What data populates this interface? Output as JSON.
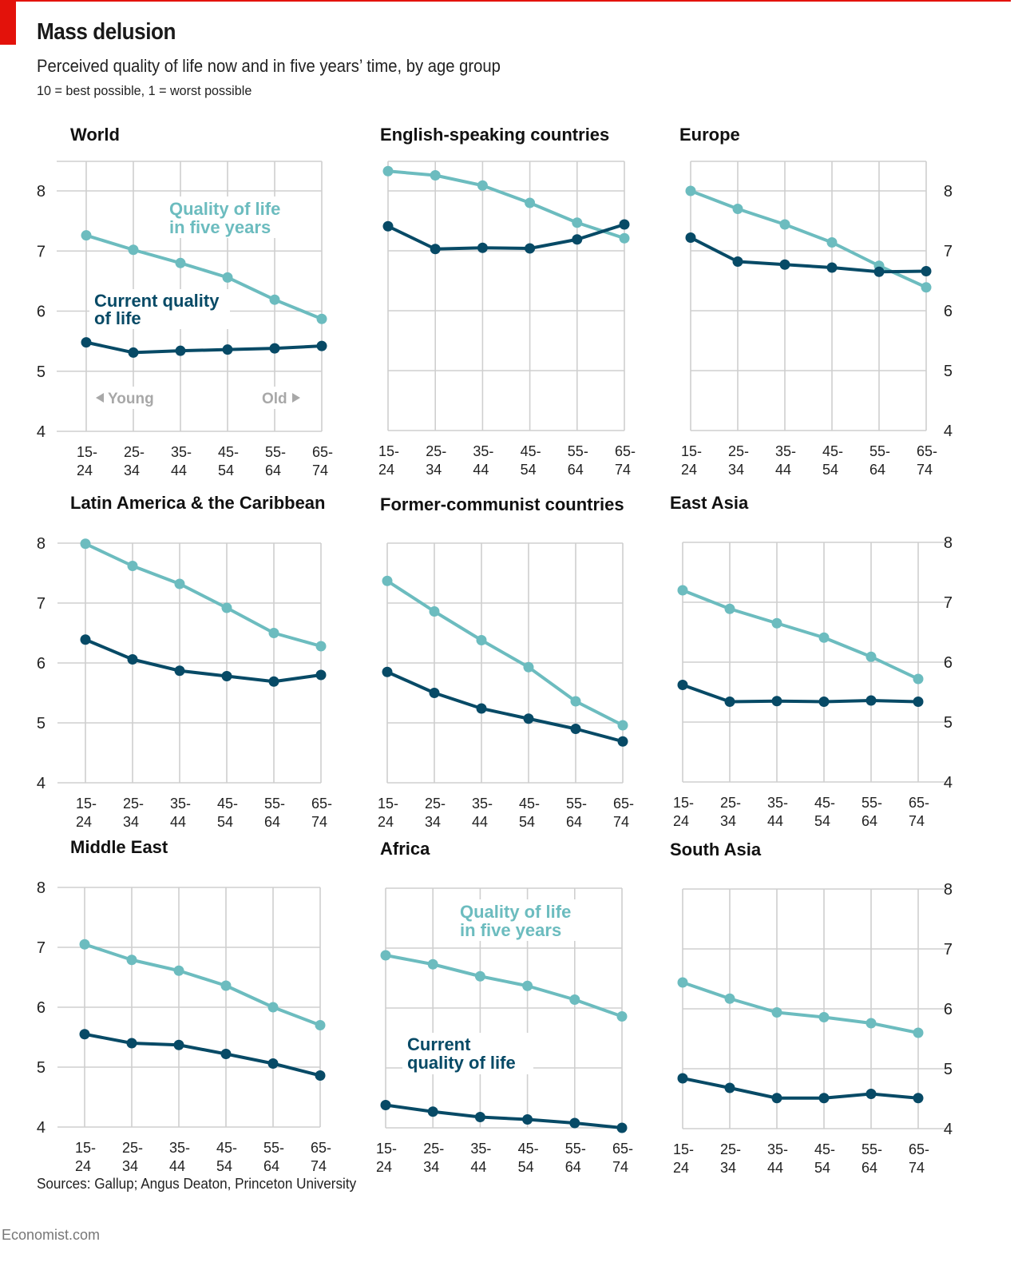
{
  "header": {
    "title": "Mass delusion",
    "subtitle": "Perceived quality of life now and in five years’ time, by age group",
    "scale_note": "10 = best possible, 1 = worst possible"
  },
  "footer": {
    "source": "Sources: Gallup; Angus Deaton, Princeton University",
    "brand": "Economist.com"
  },
  "colors": {
    "future": "#6cbcbf",
    "current": "#074a66",
    "brand_red": "#e3120b",
    "grid": "#cfcfcf"
  },
  "chart_data": {
    "type": "line",
    "title": "Mass delusion",
    "subtitle": "Perceived quality of life now and in five years’ time, by age group",
    "categories": [
      "15-\n24",
      "25-\n34",
      "35-\n44",
      "45-\n54",
      "55-\n64",
      "65-\n74"
    ],
    "category_labels": [
      [
        "15-",
        "24"
      ],
      [
        "25-",
        "34"
      ],
      [
        "35-",
        "44"
      ],
      [
        "45-",
        "54"
      ],
      [
        "55-",
        "64"
      ],
      [
        "65-",
        "74"
      ]
    ],
    "yticks": [
      4,
      5,
      6,
      7,
      8
    ],
    "ylim": [
      4,
      8
    ],
    "grid": true,
    "series_names": {
      "future": "Quality of life in five years",
      "current": "Current quality of life"
    },
    "annotations": {
      "future_lines": [
        "Quality of life",
        "in five years"
      ],
      "current_lines_world": [
        "Current quality",
        "of life"
      ],
      "current_lines_africa": [
        "Current",
        "quality of life"
      ],
      "young": "Young",
      "old": "Old"
    },
    "panels": [
      {
        "name": "World",
        "series": [
          {
            "name": "Quality of life in five years",
            "key": "future",
            "values": [
              7.26,
              7.02,
              6.8,
              6.56,
              6.19,
              5.87
            ]
          },
          {
            "name": "Current quality of life",
            "key": "current",
            "values": [
              5.48,
              5.31,
              5.34,
              5.36,
              5.38,
              5.42
            ]
          }
        ]
      },
      {
        "name": "English-speaking countries",
        "series": [
          {
            "name": "Quality of life in five years",
            "key": "future",
            "values": [
              8.33,
              8.26,
              8.09,
              7.8,
              7.47,
              7.21
            ]
          },
          {
            "name": "Current quality of life",
            "key": "current",
            "values": [
              7.41,
              7.03,
              7.05,
              7.04,
              7.19,
              7.44
            ]
          }
        ]
      },
      {
        "name": "Europe",
        "series": [
          {
            "name": "Quality of life in five years",
            "key": "future",
            "values": [
              8.0,
              7.7,
              7.44,
              7.14,
              6.75,
              6.39
            ]
          },
          {
            "name": "Current quality of life",
            "key": "current",
            "values": [
              7.22,
              6.82,
              6.77,
              6.72,
              6.65,
              6.66
            ]
          }
        ]
      },
      {
        "name": "Latin America & the Caribbean",
        "series": [
          {
            "name": "Quality of life in five years",
            "key": "future",
            "values": [
              7.99,
              7.62,
              7.32,
              6.92,
              6.5,
              6.28
            ]
          },
          {
            "name": "Current quality of life",
            "key": "current",
            "values": [
              6.39,
              6.06,
              5.87,
              5.78,
              5.69,
              5.8
            ]
          }
        ]
      },
      {
        "name": "Former-communist countries",
        "series": [
          {
            "name": "Quality of life in five years",
            "key": "future",
            "values": [
              7.37,
              6.86,
              6.38,
              5.93,
              5.36,
              4.96
            ]
          },
          {
            "name": "Current quality of life",
            "key": "current",
            "values": [
              5.85,
              5.5,
              5.24,
              5.07,
              4.9,
              4.69
            ]
          }
        ]
      },
      {
        "name": "East Asia",
        "series": [
          {
            "name": "Quality of life in five years",
            "key": "future",
            "values": [
              7.2,
              6.89,
              6.65,
              6.41,
              6.09,
              5.72
            ]
          },
          {
            "name": "Current quality of life",
            "key": "current",
            "values": [
              5.62,
              5.34,
              5.35,
              5.34,
              5.36,
              5.34
            ]
          }
        ]
      },
      {
        "name": "Middle East",
        "series": [
          {
            "name": "Quality of life in five years",
            "key": "future",
            "values": [
              7.05,
              6.79,
              6.61,
              6.36,
              6.0,
              5.7
            ]
          },
          {
            "name": "Current quality of life",
            "key": "current",
            "values": [
              5.55,
              5.4,
              5.37,
              5.22,
              5.06,
              4.86
            ]
          }
        ]
      },
      {
        "name": "Africa",
        "series": [
          {
            "name": "Quality of life in five years",
            "key": "future",
            "values": [
              6.88,
              6.73,
              6.53,
              6.37,
              6.14,
              5.86
            ]
          },
          {
            "name": "Current quality of life",
            "key": "current",
            "values": [
              4.38,
              4.27,
              4.18,
              4.14,
              4.08,
              4.0
            ]
          }
        ]
      },
      {
        "name": "South Asia",
        "series": [
          {
            "name": "Quality of life in five years",
            "key": "future",
            "values": [
              6.44,
              6.17,
              5.94,
              5.86,
              5.76,
              5.6
            ]
          },
          {
            "name": "Current quality of life",
            "key": "current",
            "values": [
              4.84,
              4.68,
              4.51,
              4.51,
              4.58,
              4.51
            ]
          }
        ]
      }
    ]
  }
}
